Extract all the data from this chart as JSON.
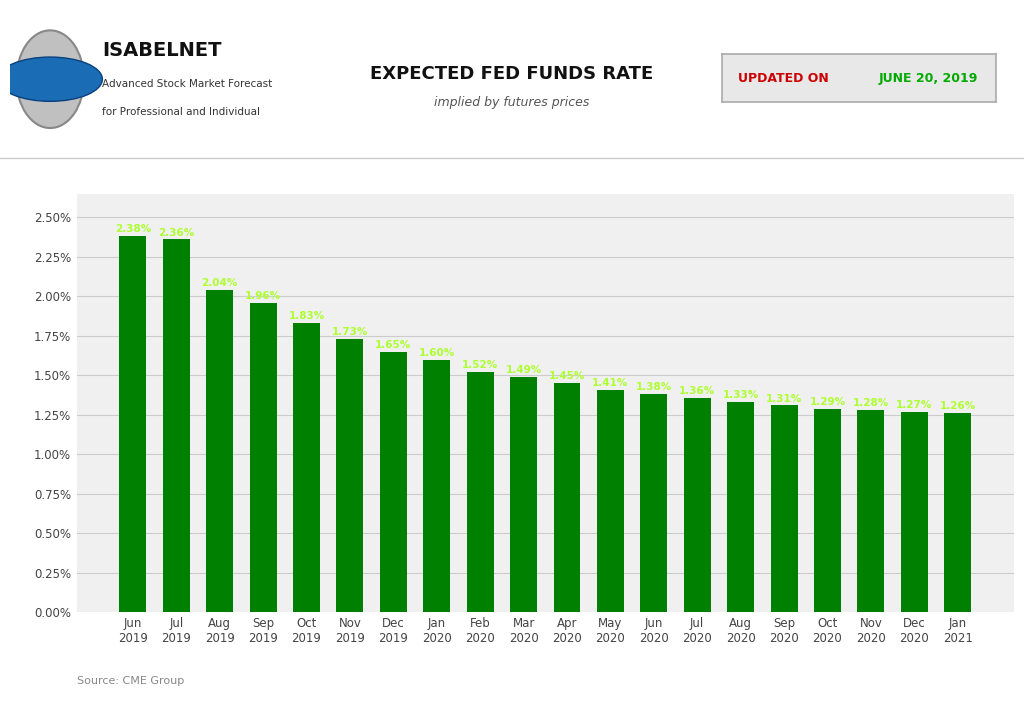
{
  "categories": [
    "Jun\n2019",
    "Jul\n2019",
    "Aug\n2019",
    "Sep\n2019",
    "Oct\n2019",
    "Nov\n2019",
    "Dec\n2019",
    "Jan\n2020",
    "Feb\n2020",
    "Mar\n2020",
    "Apr\n2020",
    "May\n2020",
    "Jun\n2020",
    "Jul\n2020",
    "Aug\n2020",
    "Sep\n2020",
    "Oct\n2020",
    "Nov\n2020",
    "Dec\n2020",
    "Jan\n2021"
  ],
  "values": [
    2.38,
    2.36,
    2.04,
    1.96,
    1.83,
    1.73,
    1.65,
    1.6,
    1.52,
    1.49,
    1.45,
    1.41,
    1.38,
    1.36,
    1.33,
    1.31,
    1.29,
    1.28,
    1.27,
    1.26
  ],
  "labels": [
    "2.38%",
    "2.36%",
    "2.04%",
    "1.96%",
    "1.83%",
    "1.73%",
    "1.65%",
    "1.60%",
    "1.52%",
    "1.49%",
    "1.45%",
    "1.41%",
    "1.38%",
    "1.36%",
    "1.33%",
    "1.31%",
    "1.29%",
    "1.28%",
    "1.27%",
    "1.26%"
  ],
  "bar_color": "#008000",
  "title": "EXPECTED FED FUNDS RATE",
  "subtitle": "implied by futures prices",
  "ylim": [
    0,
    2.65
  ],
  "yticks": [
    0.0,
    0.25,
    0.5,
    0.75,
    1.0,
    1.25,
    1.5,
    1.75,
    2.0,
    2.25,
    2.5
  ],
  "background_color": "#ffffff",
  "plot_bg_color": "#f0f0f0",
  "grid_color": "#cccccc",
  "source_text": "Source: CME Group",
  "update_prefix": "UPDATED ON ",
  "update_date": "JUNE 20, 2019",
  "update_prefix_color": "#cc0000",
  "update_date_color": "#00aa00",
  "update_box_bg": "#e8e8e8",
  "update_box_edge_color": "#aaaaaa",
  "label_color": "#adff2f",
  "title_fontsize": 13,
  "subtitle_fontsize": 9,
  "tick_fontsize": 8.5,
  "bar_label_fontsize": 7.5,
  "source_fontsize": 8,
  "isabelnet_fontsize": 14,
  "subtitle2_fontsize": 7.5
}
